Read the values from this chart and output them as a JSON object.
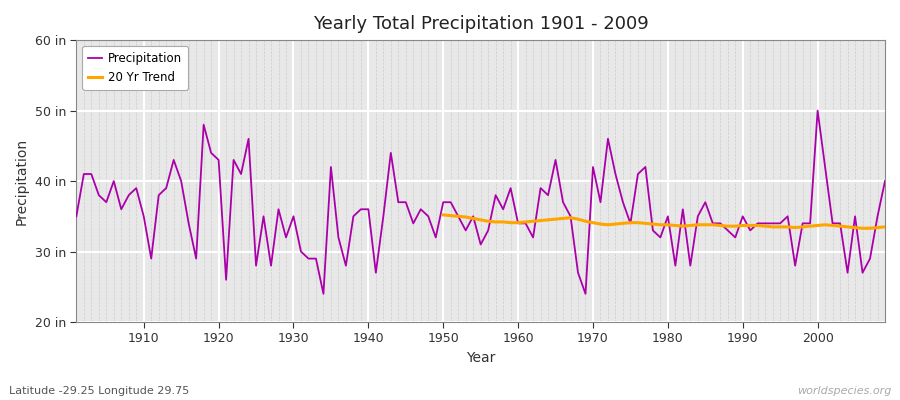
{
  "title": "Yearly Total Precipitation 1901 - 2009",
  "xlabel": "Year",
  "ylabel": "Precipitation",
  "subtitle": "Latitude -29.25 Longitude 29.75",
  "watermark": "worldspecies.org",
  "ylim": [
    20,
    60
  ],
  "yticks": [
    20,
    30,
    40,
    50,
    60
  ],
  "ytick_labels": [
    "20 in",
    "30 in",
    "40 in",
    "50 in",
    "60 in"
  ],
  "xlim": [
    1901,
    2009
  ],
  "xticks": [
    1910,
    1920,
    1930,
    1940,
    1950,
    1960,
    1970,
    1980,
    1990,
    2000
  ],
  "precip_color": "#AA00AA",
  "trend_color": "#FFA500",
  "fig_bg": "#FFFFFF",
  "plot_bg": "#E8E8E8",
  "years": [
    1901,
    1902,
    1903,
    1904,
    1905,
    1906,
    1907,
    1908,
    1909,
    1910,
    1911,
    1912,
    1913,
    1914,
    1915,
    1916,
    1917,
    1918,
    1919,
    1920,
    1921,
    1922,
    1923,
    1924,
    1925,
    1926,
    1927,
    1928,
    1929,
    1930,
    1931,
    1932,
    1933,
    1934,
    1935,
    1936,
    1937,
    1938,
    1939,
    1940,
    1941,
    1942,
    1943,
    1944,
    1945,
    1946,
    1947,
    1948,
    1949,
    1950,
    1951,
    1952,
    1953,
    1954,
    1955,
    1956,
    1957,
    1958,
    1959,
    1960,
    1961,
    1962,
    1963,
    1964,
    1965,
    1966,
    1967,
    1968,
    1969,
    1970,
    1971,
    1972,
    1973,
    1974,
    1975,
    1976,
    1977,
    1978,
    1979,
    1980,
    1981,
    1982,
    1983,
    1984,
    1985,
    1986,
    1987,
    1988,
    1989,
    1990,
    1991,
    1992,
    1993,
    1994,
    1995,
    1996,
    1997,
    1998,
    1999,
    2000,
    2001,
    2002,
    2003,
    2004,
    2005,
    2006,
    2007,
    2008,
    2009
  ],
  "precip": [
    35.0,
    41.0,
    41.0,
    38.0,
    37.0,
    40.0,
    36.0,
    38.0,
    39.0,
    35.0,
    29.0,
    38.0,
    39.0,
    43.0,
    40.0,
    34.0,
    29.0,
    48.0,
    44.0,
    43.0,
    26.0,
    43.0,
    41.0,
    46.0,
    28.0,
    35.0,
    28.0,
    36.0,
    32.0,
    35.0,
    30.0,
    29.0,
    29.0,
    24.0,
    42.0,
    32.0,
    28.0,
    35.0,
    36.0,
    36.0,
    27.0,
    35.0,
    44.0,
    37.0,
    37.0,
    34.0,
    36.0,
    35.0,
    32.0,
    37.0,
    37.0,
    35.0,
    33.0,
    35.0,
    31.0,
    33.0,
    38.0,
    36.0,
    39.0,
    34.0,
    34.0,
    32.0,
    39.0,
    38.0,
    43.0,
    37.0,
    35.0,
    27.0,
    24.0,
    42.0,
    37.0,
    46.0,
    41.0,
    37.0,
    34.0,
    41.0,
    42.0,
    33.0,
    32.0,
    35.0,
    28.0,
    36.0,
    28.0,
    35.0,
    37.0,
    34.0,
    34.0,
    33.0,
    32.0,
    35.0,
    33.0,
    34.0,
    34.0,
    34.0,
    34.0,
    35.0,
    28.0,
    34.0,
    34.0,
    50.0,
    42.0,
    34.0,
    34.0,
    27.0,
    35.0,
    27.0,
    29.0,
    35.0,
    40.0
  ],
  "trend": [
    null,
    null,
    null,
    null,
    null,
    null,
    null,
    null,
    null,
    null,
    null,
    null,
    null,
    null,
    null,
    null,
    null,
    null,
    null,
    null,
    null,
    null,
    null,
    null,
    null,
    null,
    null,
    null,
    null,
    null,
    null,
    null,
    null,
    null,
    null,
    null,
    null,
    null,
    null,
    null,
    null,
    null,
    null,
    null,
    null,
    null,
    null,
    null,
    null,
    35.2,
    35.1,
    35.0,
    34.9,
    34.7,
    34.5,
    34.3,
    34.2,
    34.2,
    34.1,
    34.1,
    34.2,
    34.3,
    34.4,
    34.5,
    34.6,
    34.7,
    34.8,
    34.6,
    34.3,
    34.1,
    33.9,
    33.8,
    33.9,
    34.0,
    34.1,
    34.1,
    34.0,
    33.9,
    33.8,
    33.8,
    33.7,
    33.6,
    33.7,
    33.8,
    33.8,
    33.8,
    33.7,
    33.6,
    33.6,
    33.7,
    33.7,
    33.7,
    33.6,
    33.5,
    33.5,
    33.5,
    33.4,
    33.5,
    33.6,
    33.7,
    33.8,
    33.7,
    33.6,
    33.5,
    33.4,
    33.3,
    33.3,
    33.4,
    33.5
  ]
}
